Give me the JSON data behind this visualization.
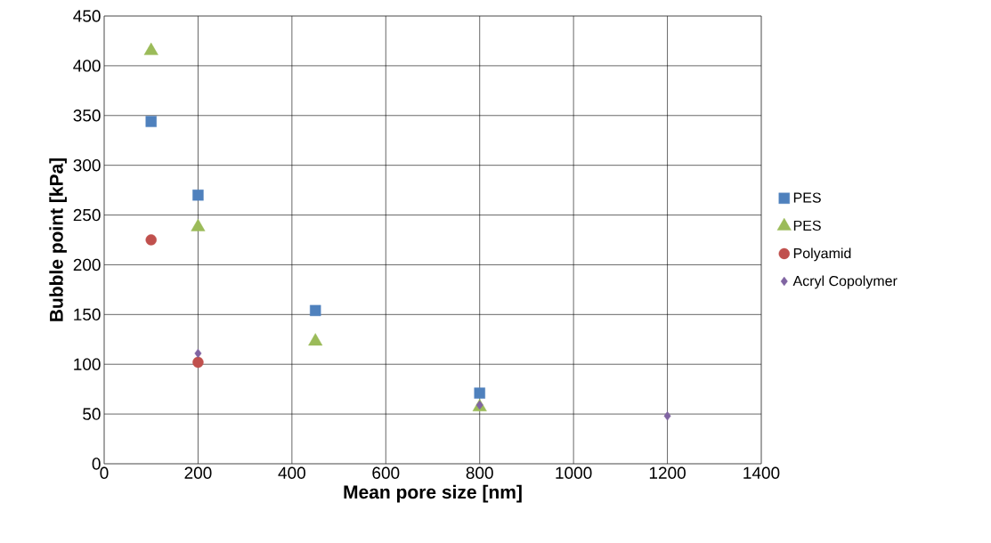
{
  "chart_data": {
    "type": "scatter",
    "xlabel": "Mean pore size [nm]",
    "ylabel": "Bubble point [kPa]",
    "xlim": [
      0,
      1400
    ],
    "ylim": [
      0,
      450
    ],
    "xticks": [
      0,
      200,
      400,
      600,
      800,
      1000,
      1200,
      1400
    ],
    "yticks": [
      0,
      50,
      100,
      150,
      200,
      250,
      300,
      350,
      400,
      450
    ],
    "grid": true,
    "legend": "right",
    "series": [
      {
        "name": "PES",
        "color": "#4f81bd",
        "marker": "square",
        "x": [
          100,
          200,
          450,
          800
        ],
        "values": [
          344,
          270,
          154,
          71
        ]
      },
      {
        "name": "PES",
        "color": "#9bbb59",
        "marker": "triangle",
        "x": [
          100,
          200,
          450,
          800
        ],
        "values": [
          415,
          238,
          123,
          57
        ]
      },
      {
        "name": "Polyamid",
        "color": "#c0504d",
        "marker": "circle",
        "x": [
          100,
          200
        ],
        "values": [
          225,
          102
        ]
      },
      {
        "name": "Acryl Copolymer",
        "color": "#8064a2",
        "marker": "diamond",
        "x": [
          200,
          800,
          1200
        ],
        "values": [
          111,
          59,
          48
        ]
      }
    ]
  }
}
